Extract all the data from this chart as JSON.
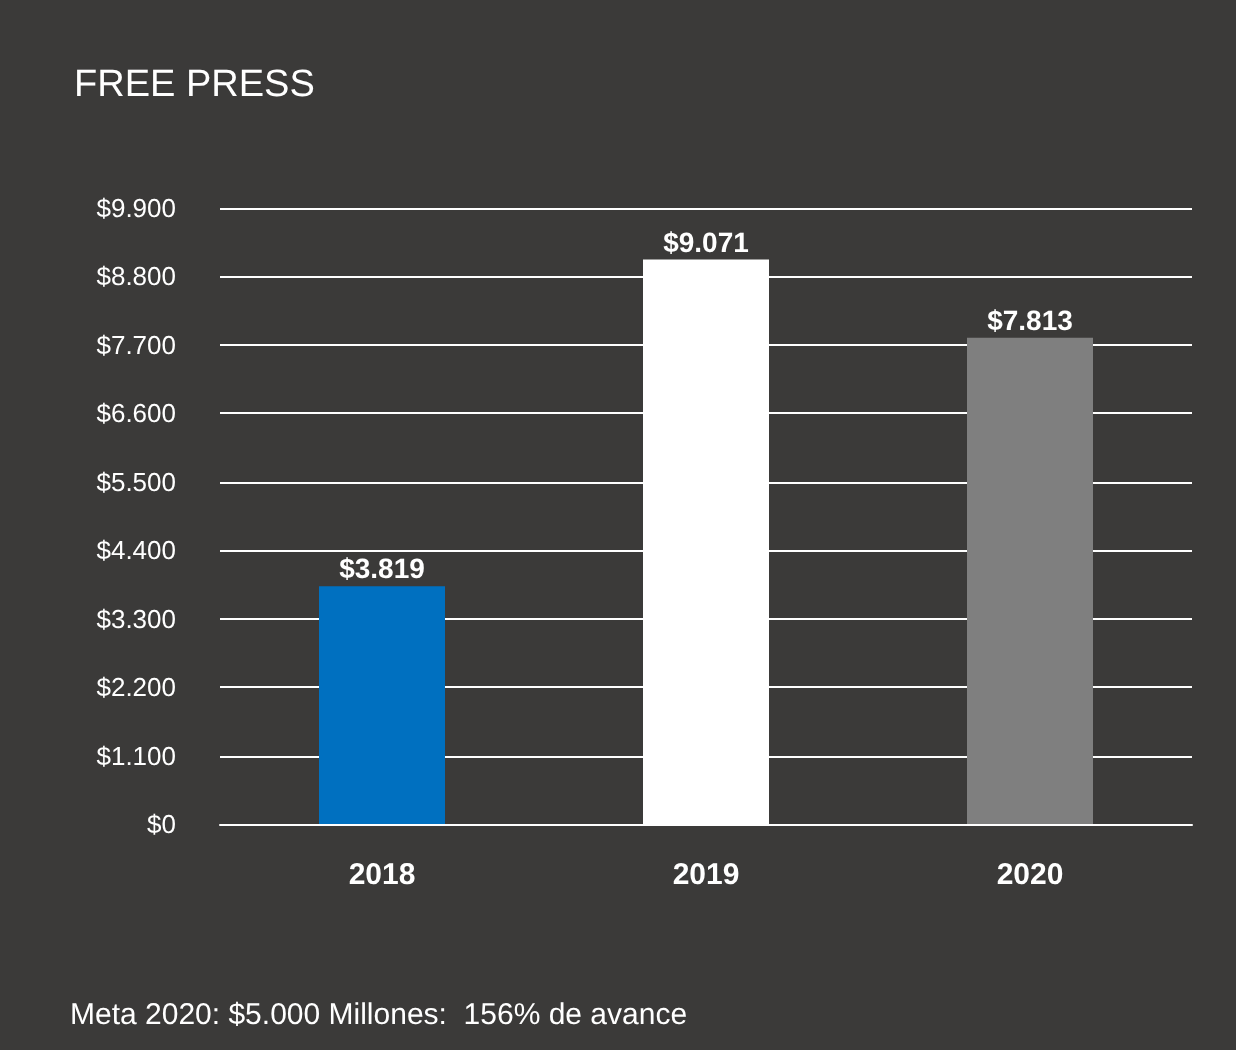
{
  "chart_data": {
    "type": "bar",
    "title": "FREE PRESS",
    "categories": [
      "2018",
      "2019",
      "2020"
    ],
    "values": [
      3819,
      9071,
      7813
    ],
    "colors": [
      "#0070c0",
      "#ffffff",
      "#7f7f7f"
    ],
    "value_labels": [
      "$3.819",
      "$9.071",
      "$7.813"
    ],
    "ylim": [
      0,
      9900
    ],
    "yticks": [
      {
        "value": 0,
        "label": "$0"
      },
      {
        "value": 1100,
        "label": "$1.100"
      },
      {
        "value": 2200,
        "label": "$2.200"
      },
      {
        "value": 3300,
        "label": "$3.300"
      },
      {
        "value": 4400,
        "label": "$4.400"
      },
      {
        "value": 5500,
        "label": "$5.500"
      },
      {
        "value": 6600,
        "label": "$6.600"
      },
      {
        "value": 7700,
        "label": "$7.700"
      },
      {
        "value": 8800,
        "label": "$8.800"
      },
      {
        "value": 9900,
        "label": "$9.900"
      }
    ],
    "grid": "y",
    "annotations": [
      "Meta 2020: $5.000 Millones:  156% de avance"
    ]
  }
}
